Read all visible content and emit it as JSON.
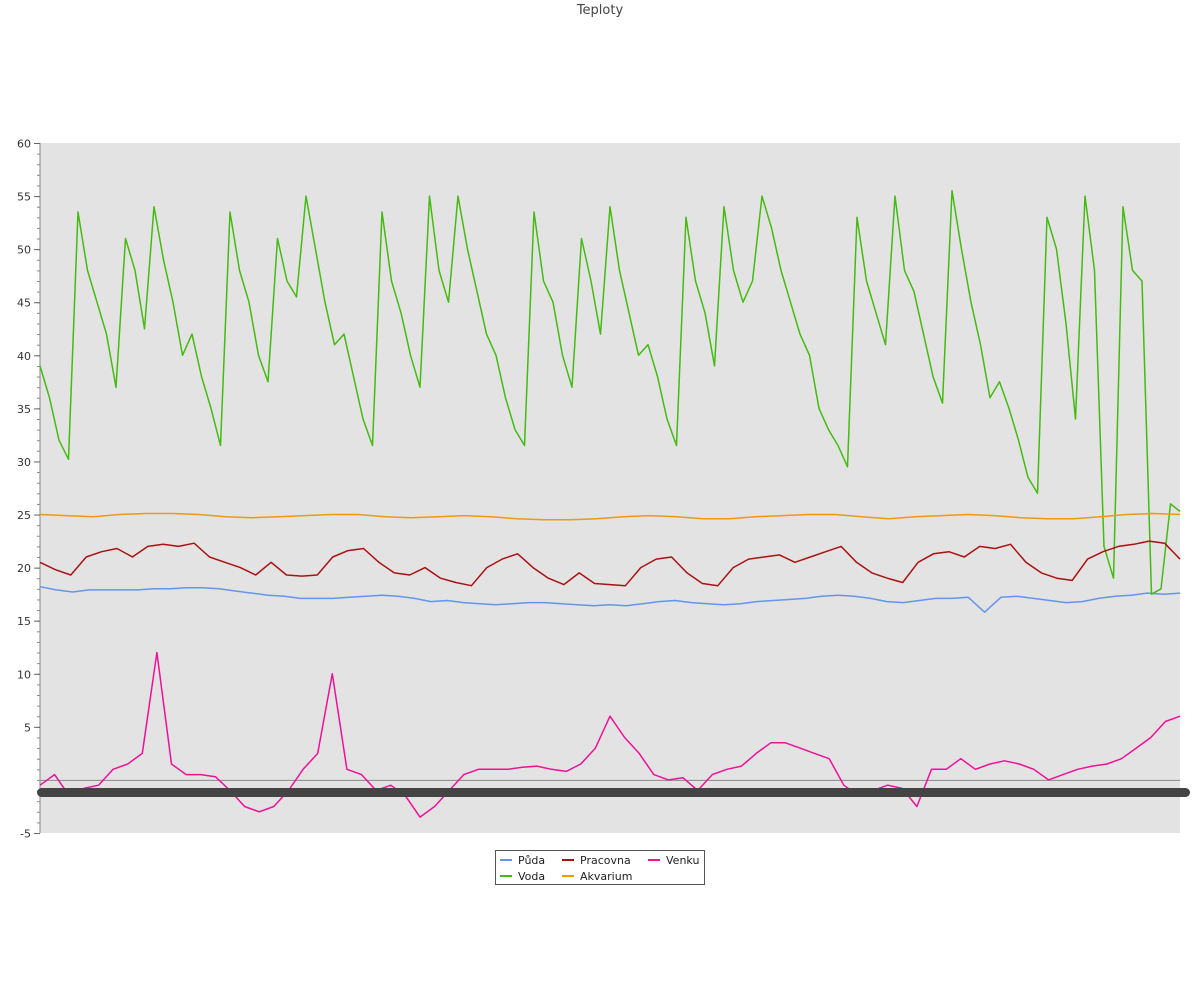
{
  "chart_data": {
    "type": "line",
    "title": "Teploty",
    "xlabel": "",
    "ylabel": "",
    "ylim": [
      -5,
      60
    ],
    "yticks": [
      "-5",
      "5",
      "10",
      "15",
      "20",
      "25",
      "30",
      "35",
      "40",
      "45",
      "50",
      "55",
      "60"
    ],
    "grid": false,
    "legend_position": "bottom-center",
    "series": [
      {
        "name": "Půda",
        "color": "#6495ed",
        "values": [
          18.2,
          17.9,
          17.7,
          17.9,
          17.9,
          17.9,
          17.9,
          18.0,
          18.0,
          18.1,
          18.1,
          18.0,
          17.8,
          17.6,
          17.4,
          17.3,
          17.1,
          17.1,
          17.1,
          17.2,
          17.3,
          17.4,
          17.3,
          17.1,
          16.8,
          16.9,
          16.7,
          16.6,
          16.5,
          16.6,
          16.7,
          16.7,
          16.6,
          16.5,
          16.4,
          16.5,
          16.4,
          16.6,
          16.8,
          16.9,
          16.7,
          16.6,
          16.5,
          16.6,
          16.8,
          16.9,
          17.0,
          17.1,
          17.3,
          17.4,
          17.3,
          17.1,
          16.8,
          16.7,
          16.9,
          17.1,
          17.1,
          17.2,
          15.8,
          17.2,
          17.3,
          17.1,
          16.9,
          16.7,
          16.8,
          17.1,
          17.3,
          17.4,
          17.6,
          17.5,
          17.6
        ]
      },
      {
        "name": "Voda",
        "color": "#44bb11",
        "values": [
          39.0,
          36.0,
          32.0,
          30.2,
          53.5,
          48.0,
          45.0,
          42.0,
          37.0,
          51.0,
          48.0,
          42.5,
          54.0,
          49.0,
          45.0,
          40.0,
          42.0,
          38.0,
          35.0,
          31.5,
          53.5,
          48.0,
          45.0,
          40.0,
          37.5,
          51.0,
          47.0,
          45.5,
          55.0,
          50.0,
          45.0,
          41.0,
          42.0,
          38.0,
          34.0,
          31.5,
          53.5,
          47.0,
          44.0,
          40.0,
          37.0,
          55.0,
          48.0,
          45.0,
          55.0,
          50.0,
          46.0,
          42.0,
          40.0,
          36.0,
          33.0,
          31.5,
          53.5,
          47.0,
          45.0,
          40.0,
          37.0,
          51.0,
          47.0,
          42.0,
          54.0,
          48.0,
          44.0,
          40.0,
          41.0,
          38.0,
          34.0,
          31.5,
          53.0,
          47.0,
          44.0,
          39.0,
          54.0,
          48.0,
          45.0,
          47.0,
          55.0,
          52.0,
          48.0,
          45.0,
          42.0,
          40.0,
          35.0,
          33.0,
          31.5,
          29.5,
          53.0,
          47.0,
          44.0,
          41.0,
          55.0,
          48.0,
          46.0,
          42.0,
          38.0,
          35.5,
          55.5,
          50.0,
          45.0,
          41.0,
          36.0,
          37.5,
          35.0,
          32.0,
          28.5,
          27.0,
          53.0,
          50.0,
          43.0,
          34.0,
          55.0,
          48.0,
          22.0,
          19.0,
          54.0,
          48.0,
          47.0,
          17.5,
          18.0,
          26.0,
          25.3
        ]
      },
      {
        "name": "Pracovna",
        "color": "#aa1111",
        "values": [
          20.5,
          19.8,
          19.3,
          21.0,
          21.5,
          21.8,
          21.0,
          22.0,
          22.2,
          22.0,
          22.3,
          21.0,
          20.5,
          20.0,
          19.3,
          20.5,
          19.3,
          19.2,
          19.3,
          21.0,
          21.6,
          21.8,
          20.5,
          19.5,
          19.3,
          20.0,
          19.0,
          18.6,
          18.3,
          20.0,
          20.8,
          21.3,
          20.0,
          19.0,
          18.4,
          19.5,
          18.5,
          18.4,
          18.3,
          20.0,
          20.8,
          21.0,
          19.5,
          18.5,
          18.3,
          20.0,
          20.8,
          21.0,
          21.2,
          20.5,
          21.0,
          21.5,
          22.0,
          20.5,
          19.5,
          19.0,
          18.6,
          20.5,
          21.3,
          21.5,
          21.0,
          22.0,
          21.8,
          22.2,
          20.5,
          19.5,
          19.0,
          18.8,
          20.8,
          21.5,
          22.0,
          22.2,
          22.5,
          22.3,
          20.8
        ]
      },
      {
        "name": "Akvarium",
        "color": "#ee9911",
        "values": [
          25.0,
          24.9,
          24.8,
          25.0,
          25.1,
          25.1,
          25.0,
          24.8,
          24.7,
          24.8,
          24.9,
          25.0,
          25.0,
          24.8,
          24.7,
          24.8,
          24.9,
          24.8,
          24.6,
          24.5,
          24.5,
          24.6,
          24.8,
          24.9,
          24.8,
          24.6,
          24.6,
          24.8,
          24.9,
          25.0,
          25.0,
          24.8,
          24.6,
          24.8,
          24.9,
          25.0,
          24.9,
          24.7,
          24.6,
          24.6,
          24.8,
          25.0,
          25.1,
          25.0
        ]
      },
      {
        "name": "Venku",
        "color": "#ee1199",
        "values": [
          -0.5,
          0.5,
          -1.5,
          -0.8,
          -0.5,
          1.0,
          1.5,
          2.5,
          12.0,
          1.5,
          0.5,
          0.5,
          0.3,
          -1.0,
          -2.5,
          -3.0,
          -2.5,
          -1.0,
          1.0,
          2.5,
          10.0,
          1.0,
          0.5,
          -1.0,
          -0.5,
          -1.5,
          -3.5,
          -2.5,
          -1.0,
          0.5,
          1.0,
          1.0,
          1.0,
          1.2,
          1.3,
          1.0,
          0.8,
          1.5,
          3.0,
          6.0,
          4.0,
          2.5,
          0.5,
          0.0,
          0.2,
          -1.0,
          0.5,
          1.0,
          1.3,
          2.5,
          3.5,
          3.5,
          3.0,
          2.5,
          2.0,
          -0.5,
          -1.5,
          -1.0,
          -0.5,
          -0.8,
          -2.5,
          1.0,
          1.0,
          2.0,
          1.0,
          1.5,
          1.8,
          1.5,
          1.0,
          0.0,
          0.5,
          1.0,
          1.3,
          1.5,
          2.0,
          3.0,
          4.0,
          5.5,
          6.0
        ]
      }
    ]
  }
}
